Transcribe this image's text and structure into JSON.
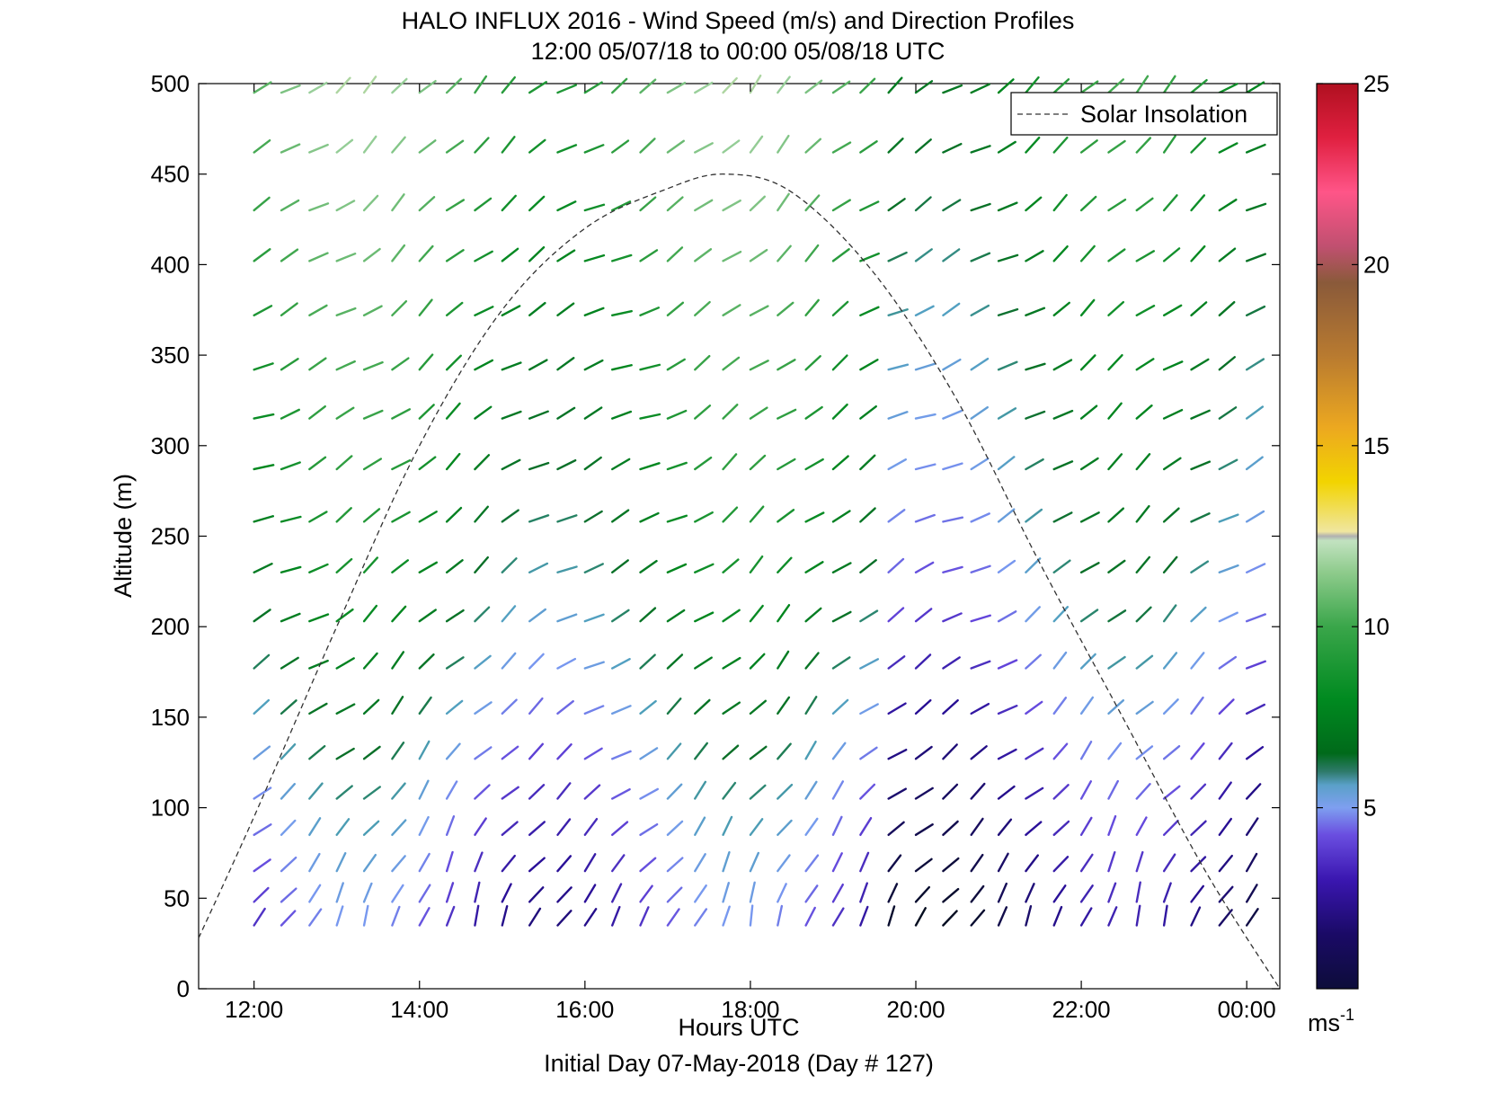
{
  "chart_data": {
    "type": "wind_barb_profile",
    "title": "HALO INFLUX 2016 - Wind Speed (m/s) and Direction Profiles",
    "subtitle": "12:00 05/07/18 to 00:00 05/08/18  UTC",
    "xlabel": "Hours UTC",
    "xlabel2": "Initial Day 07-May-2018 (Day # 127)",
    "ylabel": "Altitude (m)",
    "xlim": [
      11.33,
      24.4
    ],
    "ylim": [
      0,
      500
    ],
    "x_ticks": [
      12,
      14,
      16,
      18,
      20,
      22,
      24
    ],
    "x_tick_labels": [
      "12:00",
      "14:00",
      "16:00",
      "18:00",
      "20:00",
      "22:00",
      "00:00"
    ],
    "y_ticks": [
      0,
      50,
      100,
      150,
      200,
      250,
      300,
      350,
      400,
      450,
      500
    ],
    "y_tick_labels": [
      "0",
      "50",
      "100",
      "150",
      "200",
      "250",
      "300",
      "350",
      "400",
      "450",
      "500"
    ],
    "legend": {
      "label": "Solar Insolation",
      "position": "top-right"
    },
    "colorbar": {
      "min": 0,
      "max": 25,
      "ticks": [
        5,
        10,
        15,
        20,
        25
      ],
      "tick_labels": [
        "5",
        "10",
        "15",
        "20",
        "25"
      ],
      "unit": "ms",
      "unit_exp": "-1"
    },
    "solar_insolation": {
      "x": [
        11.33,
        12,
        13,
        14,
        15,
        16,
        17,
        17.7,
        18.5,
        19.5,
        20.5,
        21.5,
        22.5,
        23.5,
        24.4
      ],
      "y": [
        28,
        95,
        200,
        300,
        375,
        420,
        442,
        450,
        440,
        395,
        325,
        235,
        150,
        65,
        0
      ]
    },
    "wind_profiles": {
      "times": [
        12,
        12.33,
        12.67,
        13,
        13.33,
        13.67,
        14,
        14.33,
        14.67,
        15,
        15.33,
        15.67,
        16,
        16.33,
        16.67,
        17,
        17.33,
        17.67,
        18,
        18.33,
        18.67,
        19,
        19.33,
        19.67,
        20,
        20.33,
        20.67,
        21,
        21.33,
        21.67,
        22,
        22.33,
        22.67,
        23,
        23.33,
        23.67,
        24
      ],
      "altitudes": [
        35,
        48,
        65,
        85,
        105,
        127,
        152,
        177,
        203,
        230,
        258,
        287,
        315,
        342,
        372,
        402,
        430,
        462,
        495
      ],
      "direction_deg_by_altitude": [
        205,
        210,
        215,
        220,
        225,
        228,
        230,
        232,
        234,
        236,
        238,
        238,
        240,
        240,
        238,
        236,
        234,
        232,
        230
      ],
      "speed_ms_by_altitude": [
        3.0,
        3.3,
        3.6,
        4.0,
        4.4,
        4.9,
        5.5,
        6.1,
        6.7,
        7.2,
        7.6,
        8.0,
        8.3,
        8.6,
        9.0,
        9.4,
        9.8,
        10.2,
        10.6
      ]
    }
  }
}
